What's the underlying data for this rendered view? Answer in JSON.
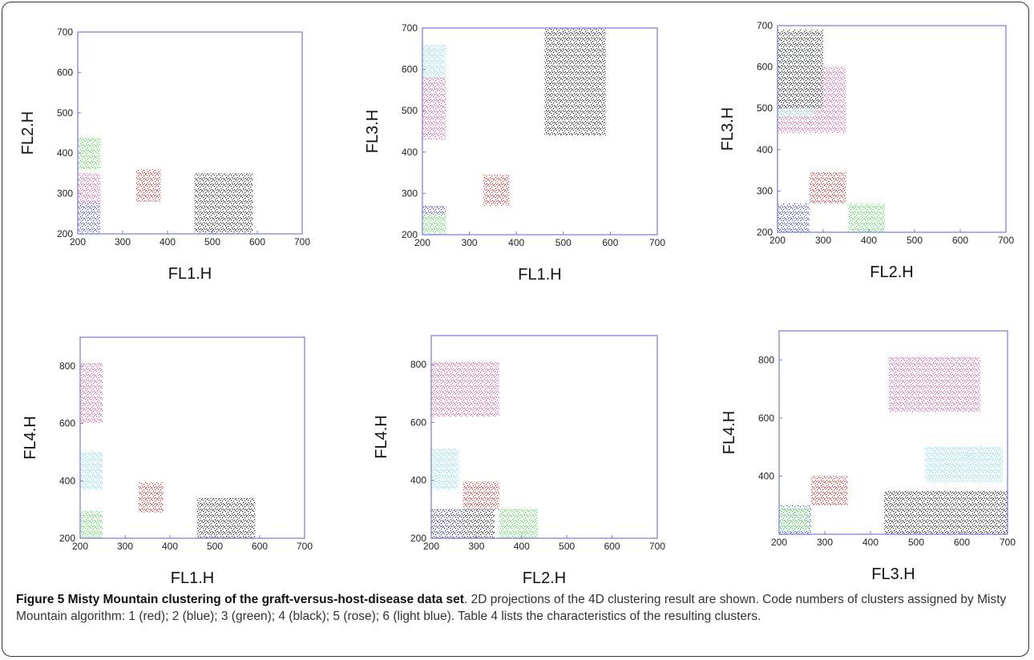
{
  "chart_data": [
    {
      "type": "scatter",
      "xlabel": "FL1.H",
      "ylabel": "FL2.H",
      "xlim": [
        200,
        700
      ],
      "ylim": [
        200,
        700
      ],
      "xticks": [
        200,
        300,
        400,
        500,
        600,
        700
      ],
      "yticks": [
        200,
        300,
        400,
        500,
        600,
        700
      ],
      "series": [
        {
          "color": "#33dd33",
          "x": [
            200,
            250
          ],
          "y": [
            360,
            440
          ]
        },
        {
          "color": "#e0409a",
          "x": [
            200,
            250
          ],
          "y": [
            270,
            350
          ]
        },
        {
          "color": "#2233cc",
          "x": [
            200,
            250
          ],
          "y": [
            200,
            280
          ]
        },
        {
          "color": "#dd1111",
          "x": [
            330,
            385
          ],
          "y": [
            280,
            360
          ]
        },
        {
          "color": "#111111",
          "x": [
            460,
            590
          ],
          "y": [
            200,
            350
          ]
        }
      ]
    },
    {
      "type": "scatter",
      "xlabel": "FL1.H",
      "ylabel": "FL3.H",
      "xlim": [
        200,
        700
      ],
      "ylim": [
        200,
        700
      ],
      "xticks": [
        200,
        300,
        400,
        500,
        600,
        700
      ],
      "yticks": [
        200,
        300,
        400,
        500,
        600,
        700
      ],
      "series": [
        {
          "color": "#66ddee",
          "x": [
            200,
            250
          ],
          "y": [
            520,
            660
          ]
        },
        {
          "color": "#e0409a",
          "x": [
            200,
            250
          ],
          "y": [
            430,
            580
          ]
        },
        {
          "color": "#2233cc",
          "x": [
            200,
            250
          ],
          "y": [
            240,
            270
          ]
        },
        {
          "color": "#33dd33",
          "x": [
            200,
            250
          ],
          "y": [
            200,
            250
          ]
        },
        {
          "color": "#dd1111",
          "x": [
            330,
            385
          ],
          "y": [
            270,
            345
          ]
        },
        {
          "color": "#111111",
          "x": [
            460,
            590
          ],
          "y": [
            440,
            700
          ]
        }
      ]
    },
    {
      "type": "scatter",
      "xlabel": "FL2.H",
      "ylabel": "FL3.H",
      "xlim": [
        200,
        700
      ],
      "ylim": [
        200,
        700
      ],
      "xticks": [
        200,
        300,
        400,
        500,
        600,
        700
      ],
      "yticks": [
        200,
        300,
        400,
        500,
        600,
        700
      ],
      "series": [
        {
          "color": "#e0409a",
          "x": [
            200,
            350
          ],
          "y": [
            440,
            600
          ]
        },
        {
          "color": "#66ddee",
          "x": [
            200,
            280
          ],
          "y": [
            480,
            660
          ]
        },
        {
          "color": "#111111",
          "x": [
            200,
            300
          ],
          "y": [
            500,
            690
          ]
        },
        {
          "color": "#2233cc",
          "x": [
            200,
            270
          ],
          "y": [
            200,
            270
          ]
        },
        {
          "color": "#dd1111",
          "x": [
            270,
            350
          ],
          "y": [
            270,
            345
          ]
        },
        {
          "color": "#33dd33",
          "x": [
            355,
            435
          ],
          "y": [
            200,
            270
          ]
        }
      ]
    },
    {
      "type": "scatter",
      "xlabel": "FL1.H",
      "ylabel": "FL4.H",
      "xlim": [
        200,
        700
      ],
      "ylim": [
        200,
        900
      ],
      "xticks": [
        200,
        300,
        400,
        500,
        600,
        700
      ],
      "yticks": [
        200,
        400,
        600,
        800
      ],
      "series": [
        {
          "color": "#e0409a",
          "x": [
            200,
            250
          ],
          "y": [
            600,
            810
          ]
        },
        {
          "color": "#66ddee",
          "x": [
            200,
            250
          ],
          "y": [
            370,
            500
          ]
        },
        {
          "color": "#33dd33",
          "x": [
            200,
            250
          ],
          "y": [
            200,
            295
          ]
        },
        {
          "color": "#dd1111",
          "x": [
            330,
            385
          ],
          "y": [
            290,
            395
          ]
        },
        {
          "color": "#111111",
          "x": [
            460,
            590
          ],
          "y": [
            200,
            340
          ]
        }
      ]
    },
    {
      "type": "scatter",
      "xlabel": "FL2.H",
      "ylabel": "FL4.H",
      "xlim": [
        200,
        700
      ],
      "ylim": [
        200,
        900
      ],
      "xticks": [
        200,
        300,
        400,
        500,
        600,
        700
      ],
      "yticks": [
        200,
        400,
        600,
        800
      ],
      "series": [
        {
          "color": "#e0409a",
          "x": [
            200,
            350
          ],
          "y": [
            620,
            810
          ]
        },
        {
          "color": "#66ddee",
          "x": [
            200,
            260
          ],
          "y": [
            370,
            510
          ]
        },
        {
          "color": "#1a1a88",
          "x": [
            200,
            270
          ],
          "y": [
            200,
            300
          ]
        },
        {
          "color": "#111111",
          "x": [
            270,
            340
          ],
          "y": [
            200,
            300
          ]
        },
        {
          "color": "#dd1111",
          "x": [
            270,
            350
          ],
          "y": [
            300,
            395
          ]
        },
        {
          "color": "#33dd33",
          "x": [
            350,
            435
          ],
          "y": [
            200,
            300
          ]
        }
      ]
    },
    {
      "type": "scatter",
      "xlabel": "FL3.H",
      "ylabel": "FL4.H",
      "xlim": [
        200,
        700
      ],
      "ylim": [
        200,
        900
      ],
      "xticks": [
        200,
        300,
        400,
        500,
        600,
        700
      ],
      "yticks": [
        400,
        600,
        800
      ],
      "series": [
        {
          "color": "#e0409a",
          "x": [
            440,
            640
          ],
          "y": [
            620,
            810
          ]
        },
        {
          "color": "#66ddee",
          "x": [
            520,
            690
          ],
          "y": [
            380,
            500
          ]
        },
        {
          "color": "#111111",
          "x": [
            430,
            700
          ],
          "y": [
            200,
            350
          ]
        },
        {
          "color": "#dd1111",
          "x": [
            270,
            350
          ],
          "y": [
            300,
            400
          ]
        },
        {
          "color": "#2233cc",
          "x": [
            200,
            270
          ],
          "y": [
            200,
            300
          ]
        },
        {
          "color": "#33dd33",
          "x": [
            200,
            265
          ],
          "y": [
            210,
            295
          ]
        }
      ]
    }
  ],
  "caption": {
    "title": "Figure 5 Misty Mountain clustering of the graft-versus-host-disease data set",
    "text": ". 2D projections of the 4D clustering result are shown. Code numbers of clusters assigned by Misty Mountain algorithm: 1 (red); 2 (blue); 3 (green); 4 (black); 5 (rose); 6 (light blue). Table 4 lists the characteristics of the resulting clusters."
  }
}
